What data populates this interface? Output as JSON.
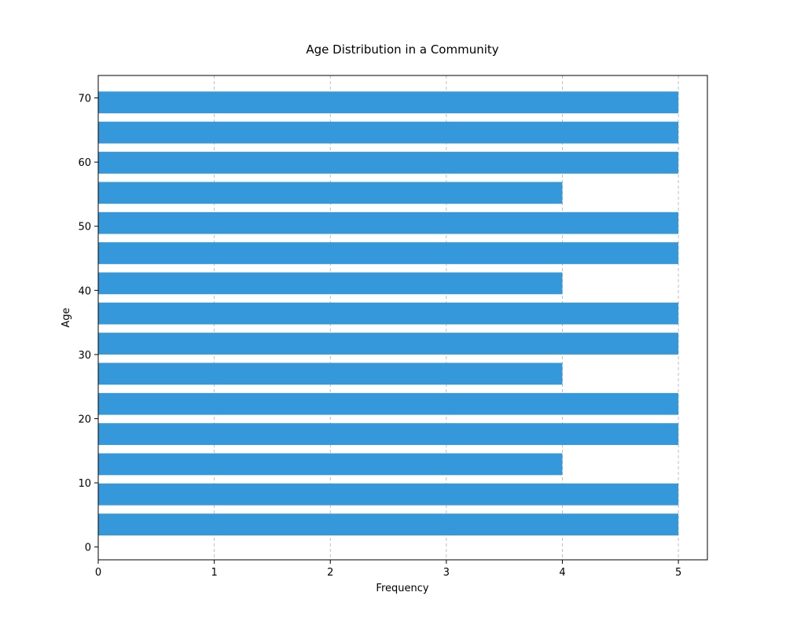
{
  "chart_data": {
    "type": "bar",
    "orientation": "horizontal",
    "title": "Age Distribution in a Community",
    "xlabel": "Frequency",
    "ylabel": "Age",
    "bar_color": "#3498db",
    "grid": "x-dashed",
    "xlim": [
      0,
      5.25
    ],
    "ylim": [
      -2,
      73.5
    ],
    "xticks": [
      0,
      1,
      2,
      3,
      4,
      5
    ],
    "yticks": [
      0,
      10,
      20,
      30,
      40,
      50,
      60,
      70
    ],
    "bar_height": 3.4,
    "categories": [
      3.5,
      8.2,
      12.9,
      17.6,
      22.3,
      27.0,
      31.7,
      36.4,
      41.1,
      45.8,
      50.5,
      55.2,
      59.9,
      64.6,
      69.3
    ],
    "values": [
      5,
      5,
      4,
      5,
      5,
      4,
      5,
      5,
      4,
      5,
      5,
      4,
      5,
      5,
      5
    ]
  }
}
